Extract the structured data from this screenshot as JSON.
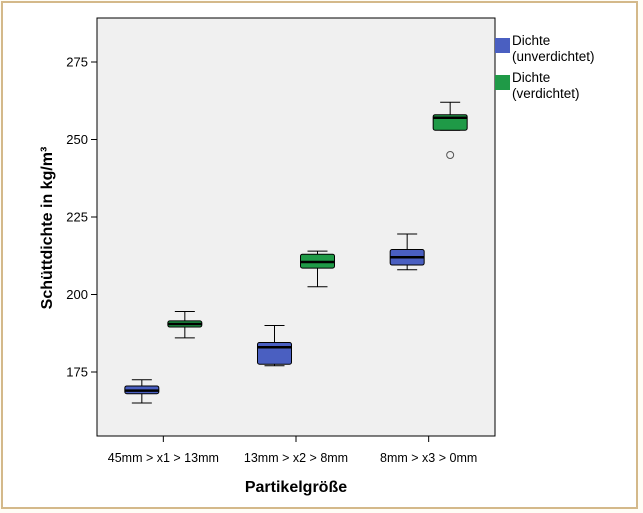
{
  "chart_data": {
    "type": "boxplot",
    "title": "",
    "xlabel": "Partikelgröße",
    "ylabel": "Schüttdichte in kg/m³",
    "ylim": [
      155,
      287
    ],
    "yticks": [
      175,
      200,
      225,
      250,
      275
    ],
    "categories": [
      "45mm > x1 > 13mm",
      "13mm > x2 > 8mm",
      "8mm > x3 > 0mm"
    ],
    "grid": false,
    "legend_position": "right",
    "series": [
      {
        "name": "Dichte (unverdichtet)",
        "legend_lines": [
          "Dichte",
          "(unverdichtet)"
        ],
        "color": "#4a5fc1",
        "boxes": [
          {
            "min": 165,
            "q1": 168,
            "median": 169,
            "q3": 170.5,
            "max": 172.5,
            "outliers": []
          },
          {
            "min": 177,
            "q1": 177.5,
            "median": 183,
            "q3": 184.5,
            "max": 190,
            "outliers": []
          },
          {
            "min": 208,
            "q1": 209.5,
            "median": 212,
            "q3": 214.5,
            "max": 219.5,
            "outliers": []
          }
        ]
      },
      {
        "name": "Dichte (verdichtet)",
        "legend_lines": [
          "Dichte",
          "(verdichtet)"
        ],
        "color": "#1f9a47",
        "boxes": [
          {
            "min": 186,
            "q1": 189.5,
            "median": 190.5,
            "q3": 191.5,
            "max": 194.5,
            "outliers": []
          },
          {
            "min": 202.5,
            "q1": 208.5,
            "median": 210.5,
            "q3": 213,
            "max": 214,
            "outliers": []
          },
          {
            "min": 253,
            "q1": 253,
            "median": 257,
            "q3": 258,
            "max": 262,
            "outliers": [
              245
            ]
          }
        ]
      }
    ]
  }
}
